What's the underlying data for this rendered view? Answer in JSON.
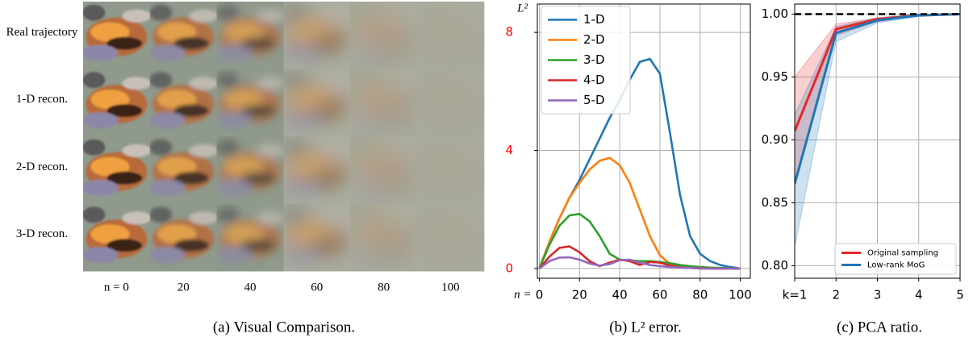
{
  "visual_comparison": {
    "row_labels": [
      "Real trajectory",
      "1-D recon.",
      "2-D recon.",
      "3-D recon."
    ],
    "column_labels": [
      "n = 0",
      "20",
      "40",
      "60",
      "80",
      "100"
    ],
    "caption": "(a) Visual Comparison."
  },
  "chart_data": [
    {
      "type": "line",
      "caption": "(b) L² error.",
      "ylabel": "L²",
      "xlabel": "n =",
      "x": [
        0,
        5,
        10,
        15,
        20,
        25,
        30,
        35,
        40,
        45,
        50,
        55,
        60,
        65,
        70,
        75,
        80,
        85,
        90,
        95,
        100
      ],
      "series": [
        {
          "name": "1-D",
          "color": "#1f77b4",
          "values": [
            0,
            0.9,
            1.7,
            2.4,
            3.0,
            3.7,
            4.4,
            5.1,
            5.7,
            6.4,
            7.0,
            7.1,
            6.6,
            4.6,
            2.5,
            1.1,
            0.5,
            0.25,
            0.12,
            0.05,
            0
          ]
        },
        {
          "name": "2-D",
          "color": "#ff7f0e",
          "values": [
            0,
            0.9,
            1.7,
            2.4,
            2.9,
            3.35,
            3.65,
            3.75,
            3.5,
            2.9,
            2.0,
            1.1,
            0.45,
            0.15,
            0.05,
            0.02,
            0,
            0,
            0,
            0,
            0
          ]
        },
        {
          "name": "3-D",
          "color": "#2ca02c",
          "values": [
            0,
            0.8,
            1.45,
            1.8,
            1.85,
            1.6,
            1.1,
            0.5,
            0.3,
            0.28,
            0.25,
            0.25,
            0.22,
            0.18,
            0.12,
            0.08,
            0.05,
            0.03,
            0.02,
            0.01,
            0
          ]
        },
        {
          "name": "4-D",
          "color": "#d62728",
          "values": [
            0,
            0.4,
            0.7,
            0.75,
            0.55,
            0.25,
            0.08,
            0.2,
            0.3,
            0.25,
            0.12,
            0.22,
            0.2,
            0.1,
            0.04,
            0.02,
            0.01,
            0,
            0,
            0,
            0
          ]
        },
        {
          "name": "5-D",
          "color": "#9467bd",
          "values": [
            0,
            0.25,
            0.37,
            0.38,
            0.3,
            0.17,
            0.1,
            0.15,
            0.28,
            0.3,
            0.2,
            0.12,
            0.08,
            0.05,
            0.03,
            0.02,
            0,
            0,
            0,
            0,
            0
          ]
        }
      ],
      "xlim": [
        -1,
        105
      ],
      "xticks": [
        0,
        20,
        40,
        60,
        80,
        100
      ],
      "ylim": [
        -0.33,
        8.96
      ],
      "yticks": [
        0,
        4,
        8
      ],
      "ytick_color": "red",
      "grid": true,
      "legend": "upper-left"
    },
    {
      "type": "band",
      "caption": "(c) PCA ratio.",
      "x": [
        1,
        2,
        3,
        4,
        5
      ],
      "series": [
        {
          "name": "Original sampling",
          "color": "#e8262a",
          "values": [
            0.907,
            0.988,
            0.996,
            0.999,
            1.0
          ],
          "lower": [
            0.868,
            0.983,
            0.994,
            0.999,
            1.0
          ],
          "upper": [
            0.95,
            0.992,
            0.997,
            1.0,
            1.0
          ]
        },
        {
          "name": "Low-rank MoG",
          "color": "#1f77b4",
          "values": [
            0.865,
            0.985,
            0.995,
            0.999,
            1.0
          ],
          "lower": [
            0.815,
            0.978,
            0.993,
            0.998,
            1.0
          ],
          "upper": [
            0.92,
            0.99,
            0.997,
            1.0,
            1.0
          ]
        }
      ],
      "hline": 1,
      "xlim": [
        1,
        5
      ],
      "xticks": [
        {
          "value": 1,
          "label": "k=1"
        },
        2,
        3,
        4,
        5
      ],
      "ylim": [
        0.79,
        1.008
      ],
      "yticks": [
        {
          "value": 0.8,
          "label": "0.80"
        },
        0.85,
        {
          "value": 0.9,
          "label": "0.90"
        },
        0.95,
        {
          "value": 1,
          "label": "1.00"
        }
      ],
      "grid": true,
      "legend": "lower-right"
    }
  ]
}
